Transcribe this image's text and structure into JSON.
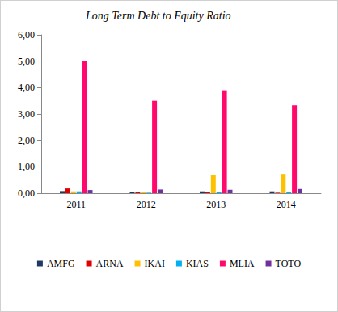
{
  "chart_data": {
    "type": "bar",
    "title": "Long Term Debt to Equity Ratio",
    "categories": [
      "2011",
      "2012",
      "2013",
      "2014"
    ],
    "series": [
      {
        "name": "AMFG",
        "color": "#1f3864",
        "values": [
          0.08,
          0.06,
          0.07,
          0.07
        ]
      },
      {
        "name": "ARNA",
        "color": "#e00000",
        "values": [
          0.18,
          0.06,
          0.05,
          0.02
        ]
      },
      {
        "name": "IKAI",
        "color": "#ffc000",
        "values": [
          0.07,
          0.04,
          0.7,
          0.73
        ]
      },
      {
        "name": "KIAS",
        "color": "#00b0f0",
        "values": [
          0.07,
          0.02,
          0.05,
          0.04
        ]
      },
      {
        "name": "MLIA",
        "color": "#ff0a6c",
        "values": [
          5.0,
          3.5,
          3.9,
          3.33
        ]
      },
      {
        "name": "TOTO",
        "color": "#7030a0",
        "values": [
          0.12,
          0.14,
          0.13,
          0.16
        ]
      }
    ],
    "ylim": [
      0,
      6
    ],
    "yticks": [
      {
        "value": 0,
        "label": "0,00"
      },
      {
        "value": 1,
        "label": "1,00"
      },
      {
        "value": 2,
        "label": "2,00"
      },
      {
        "value": 3,
        "label": "3,00"
      },
      {
        "value": 4,
        "label": "4,00"
      },
      {
        "value": 5,
        "label": "5,00"
      },
      {
        "value": 6,
        "label": "6,00"
      }
    ],
    "grid": false,
    "legend": "bottom"
  }
}
